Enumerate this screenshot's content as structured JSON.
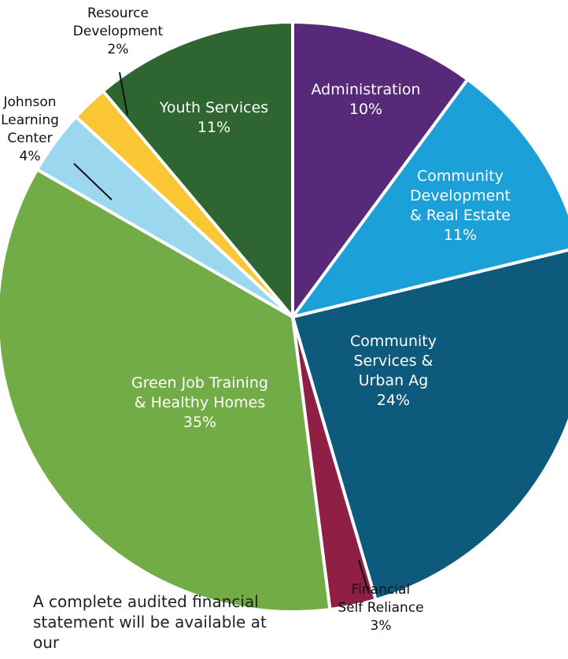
{
  "chart_data": {
    "type": "pie",
    "title": "",
    "start": "top, clockwise",
    "slices": [
      {
        "label": "Administration",
        "percent_label": "10%",
        "value": 10,
        "color": "#562a78",
        "label_pos": "inside"
      },
      {
        "label": "Community\nDevelopment\n& Real Estate",
        "percent_label": "11%",
        "value": 11,
        "color": "#1ba0d8",
        "label_pos": "inside"
      },
      {
        "label": "Community\nServices &\nUrban Ag",
        "percent_label": "24%",
        "value": 24,
        "color": "#0d5a7c",
        "label_pos": "inside"
      },
      {
        "label": "Financial\nSelf Reliance",
        "percent_label": "3%",
        "value": 2.5,
        "color": "#8f1f45",
        "label_pos": "outside"
      },
      {
        "label": "Green Job Training\n& Healthy Homes",
        "percent_label": "35%",
        "value": 35,
        "color": "#72ac46",
        "label_pos": "inside"
      },
      {
        "label": "Johnson\nLearning\nCenter",
        "percent_label": "4%",
        "value": 3.5,
        "color": "#9bd8f0",
        "label_pos": "outside"
      },
      {
        "label": "Resource\nDevelopment",
        "percent_label": "2%",
        "value": 2,
        "color": "#fbc633",
        "label_pos": "outside"
      },
      {
        "label": "Youth Services",
        "percent_label": "11%",
        "value": 11,
        "color": "#2e6530",
        "label_pos": "inside"
      }
    ]
  },
  "footnote": "A complete audited financial\nstatement will be available at our"
}
